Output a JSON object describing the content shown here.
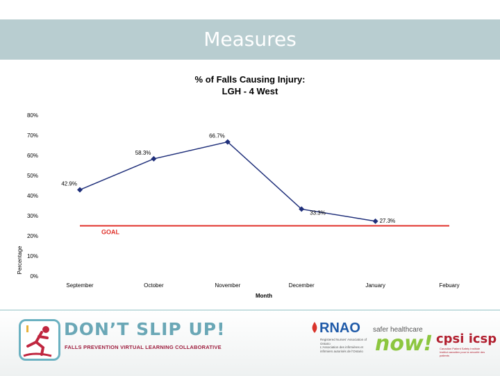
{
  "header": {
    "title": "Measures"
  },
  "chart_data": {
    "type": "line",
    "title_line1": "% of Falls Causing Injury:",
    "title_line2": "LGH - 4 West",
    "xlabel": "Month",
    "ylabel": "Percentage",
    "categories": [
      "September",
      "October",
      "November",
      "December",
      "January",
      "Febuary"
    ],
    "yticks": [
      "0%",
      "10%",
      "20%",
      "30%",
      "40%",
      "50%",
      "60%",
      "70%",
      "80%"
    ],
    "ylim": [
      0,
      80
    ],
    "series": [
      {
        "values": [
          42.9,
          58.3,
          66.7,
          33.3,
          27.3,
          null
        ],
        "labels": [
          "42.9%",
          "58.3%",
          "66.7%",
          "33.3%",
          "27.3%",
          ""
        ],
        "color": "#1f2f7a"
      }
    ],
    "goal": {
      "label": "GOAL",
      "value": 25,
      "color": "#e0322b"
    },
    "grid": false
  },
  "footer": {
    "brand_title": "DON’T SLIP UP!",
    "brand_subtitle": "FALLS PREVENTION VIRTUAL LEARNING COLLABORATIVE",
    "rnao_name": "RNAO",
    "rnao_line1": "Registered Nurses' Association of Ontario",
    "rnao_line2": "L'Association des infirmières et infirmiers autorisés de l'Ontario",
    "safer_text": "safer healthcare",
    "now_text": "now!",
    "cpsi_text": "cpsi icsp",
    "cpsi_line1": "Canadian Patient Safety Institute",
    "cpsi_line2": "Institut canadien pour la sécurité des patients",
    "accent_teal": "#6aa7b6",
    "accent_red": "#9e1f3f"
  }
}
